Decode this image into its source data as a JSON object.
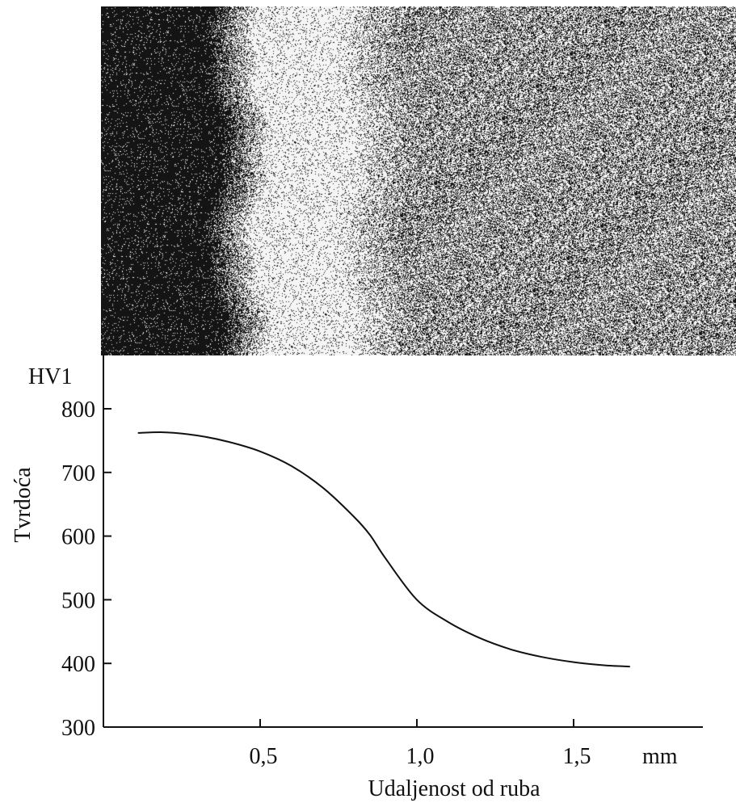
{
  "chart_data": {
    "type": "line",
    "ylabel": "Tvrdoća",
    "yunit": "HV1",
    "xlabel": "Udaljenost od ruba",
    "xunit": "mm",
    "xlim": [
      0,
      1.85
    ],
    "ylim": [
      300,
      850
    ],
    "xticks": [
      0.5,
      1.0,
      1.5
    ],
    "xtick_labels": [
      "0,5",
      "1,0",
      "1,5"
    ],
    "yticks": [
      300,
      400,
      500,
      600,
      700,
      800
    ],
    "ytick_labels": [
      "300",
      "400",
      "500",
      "600",
      "700",
      "800"
    ],
    "grid": false,
    "series": [
      {
        "x": [
          0.11,
          0.2,
          0.3,
          0.4,
          0.5,
          0.6,
          0.7,
          0.8,
          0.85,
          0.9,
          1.0,
          1.1,
          1.2,
          1.3,
          1.4,
          1.5,
          1.6,
          1.68
        ],
        "values": [
          762,
          763,
          758,
          748,
          733,
          710,
          676,
          630,
          602,
          565,
          500,
          465,
          440,
          422,
          410,
          402,
          397,
          395
        ]
      }
    ]
  }
}
